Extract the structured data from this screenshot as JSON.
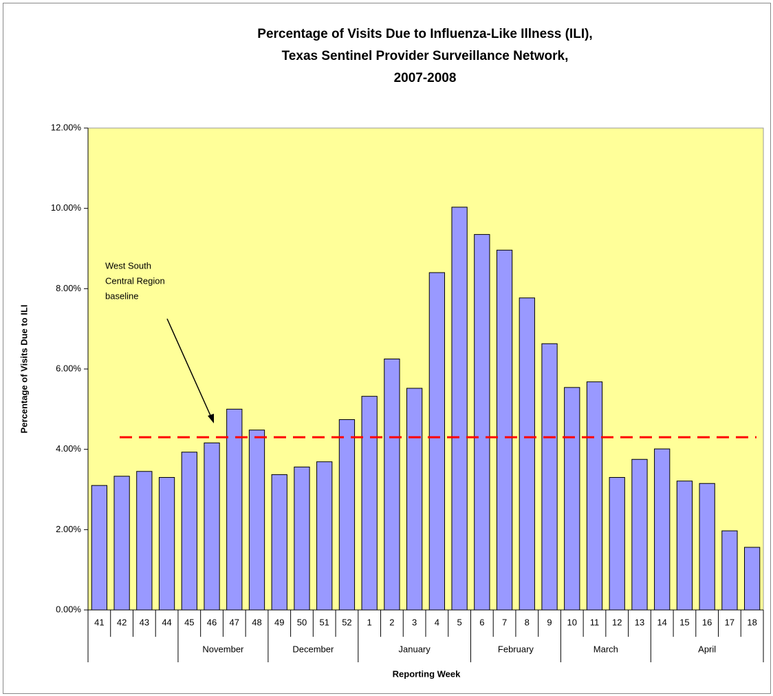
{
  "chart_data": {
    "type": "bar",
    "title": [
      "Percentage of Visits Due to Influenza-Like Illness (ILI),",
      "Texas Sentinel Provider Surveillance Network,",
      "2007-2008"
    ],
    "x_label": "Reporting Week",
    "y_label": "Percentage of Visits Due to ILI",
    "categories": [
      "41",
      "42",
      "43",
      "44",
      "45",
      "46",
      "47",
      "48",
      "49",
      "50",
      "51",
      "52",
      "1",
      "2",
      "3",
      "4",
      "5",
      "6",
      "7",
      "8",
      "9",
      "10",
      "11",
      "12",
      "13",
      "14",
      "15",
      "16",
      "17",
      "18"
    ],
    "values": [
      3.1,
      3.33,
      3.45,
      3.3,
      3.93,
      4.16,
      5.0,
      4.48,
      3.37,
      3.56,
      3.69,
      4.74,
      5.32,
      6.25,
      5.52,
      8.4,
      10.03,
      9.35,
      8.96,
      7.77,
      6.63,
      5.54,
      5.68,
      3.3,
      3.75,
      4.01,
      3.21,
      3.15,
      1.97,
      1.56
    ],
    "color": "#9999ff",
    "groups": [
      {
        "label": null,
        "span": 4
      },
      {
        "label": "November",
        "span": 4
      },
      {
        "label": "December",
        "span": 4
      },
      {
        "label": "January",
        "span": 5
      },
      {
        "label": "February",
        "span": 4
      },
      {
        "label": "March",
        "span": 4
      },
      {
        "label": "April",
        "span": 5
      }
    ],
    "ylim": [
      0,
      12
    ],
    "yticks": [
      {
        "value": 0,
        "label": "0.00%"
      },
      {
        "value": 2,
        "label": "2.00%"
      },
      {
        "value": 4,
        "label": "4.00%"
      },
      {
        "value": 6,
        "label": "6.00%"
      },
      {
        "value": 8,
        "label": "8.00%"
      },
      {
        "value": 10,
        "label": "10.00%"
      },
      {
        "value": 12,
        "label": "12.00%"
      }
    ],
    "baseline": {
      "value": 4.3,
      "color": "#ff0000"
    },
    "annotation": [
      "West South",
      "Central Region",
      "baseline"
    ],
    "plot_background": "#ffff99"
  }
}
